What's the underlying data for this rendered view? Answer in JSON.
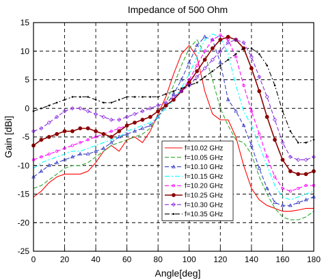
{
  "chart_data": {
    "type": "line",
    "title": "Impedance of 500 Ohm",
    "xlabel": "Angle[deg]",
    "ylabel": "Gain [dBi]",
    "xlim": [
      0,
      180
    ],
    "ylim": [
      -25,
      15
    ],
    "xticks": [
      0,
      20,
      40,
      60,
      80,
      100,
      120,
      140,
      160,
      180
    ],
    "yticks": [
      -25,
      -20,
      -15,
      -10,
      -5,
      0,
      5,
      10,
      15
    ],
    "grid": true,
    "legend_position": "bottom-center",
    "series": [
      {
        "name": "f=10.02 GHz",
        "color": "#ff0000",
        "dash": "solid",
        "marker": "none",
        "x": [
          0,
          5,
          10,
          15,
          20,
          25,
          30,
          35,
          40,
          45,
          50,
          55,
          60,
          65,
          70,
          75,
          80,
          85,
          90,
          95,
          100,
          105,
          110,
          115,
          120,
          125,
          130,
          135,
          140,
          145,
          150,
          155,
          160,
          165,
          170,
          175,
          180
        ],
        "y": [
          -15.5,
          -14.5,
          -13,
          -12,
          -11.5,
          -11.5,
          -11.5,
          -11,
          -9.5,
          -7.5,
          -6.5,
          -7.5,
          -5.5,
          -5,
          -6,
          -4,
          -1,
          2,
          6,
          9.5,
          11,
          9,
          3,
          -1,
          -2,
          -2,
          -5,
          -10,
          -14,
          -16,
          -17,
          -17.5,
          -18,
          -18,
          -17.8,
          -17.5,
          -17.5
        ]
      },
      {
        "name": "f=10.05 GHz",
        "color": "#2aa82a",
        "dash": "dashed",
        "marker": "none",
        "x": [
          0,
          5,
          10,
          15,
          20,
          25,
          30,
          35,
          40,
          45,
          50,
          55,
          60,
          65,
          70,
          75,
          80,
          85,
          90,
          95,
          100,
          105,
          110,
          115,
          120,
          125,
          130,
          135,
          140,
          145,
          150,
          155,
          160,
          165,
          170,
          175,
          180
        ],
        "y": [
          -14,
          -13.5,
          -12.5,
          -11.5,
          -10.5,
          -10,
          -10,
          -9.5,
          -8.5,
          -7.5,
          -6.5,
          -6,
          -5.5,
          -5,
          -4.5,
          -3.5,
          -1.5,
          1,
          4,
          7.5,
          10.5,
          12,
          9.5,
          5,
          0,
          -3,
          -5.5,
          -6,
          -8,
          -12,
          -15,
          -17.5,
          -19,
          -19.5,
          -19.5,
          -19,
          -18
        ]
      },
      {
        "name": "f=10.10 GHz",
        "color": "#3a40c4",
        "dash": "dashed",
        "marker": "triangle",
        "x": [
          0,
          5,
          10,
          15,
          20,
          25,
          30,
          35,
          40,
          45,
          50,
          55,
          60,
          65,
          70,
          75,
          80,
          85,
          90,
          95,
          100,
          105,
          110,
          115,
          120,
          125,
          130,
          135,
          140,
          145,
          150,
          155,
          160,
          165,
          170,
          175,
          180
        ],
        "y": [
          -12,
          -11,
          -10,
          -9.5,
          -9,
          -8.5,
          -8,
          -8,
          -7.5,
          -7,
          -6,
          -5,
          -4.5,
          -4,
          -3.5,
          -3,
          -1.5,
          0.5,
          2.5,
          5,
          8,
          11,
          12.5,
          12,
          8,
          1.5,
          -0.5,
          -3,
          -6.5,
          -10.5,
          -14,
          -16.5,
          -17,
          -17,
          -16.5,
          -16,
          -15.5
        ]
      },
      {
        "name": "f=10.15 GHz",
        "color": "#00ffff",
        "dash": "dashdot",
        "marker": "none",
        "x": [
          0,
          5,
          10,
          15,
          20,
          25,
          30,
          35,
          40,
          45,
          50,
          55,
          60,
          65,
          70,
          75,
          80,
          85,
          90,
          95,
          100,
          105,
          110,
          115,
          120,
          125,
          130,
          135,
          140,
          145,
          150,
          155,
          160,
          165,
          170,
          175,
          180
        ],
        "y": [
          -10.5,
          -9.5,
          -9,
          -8.5,
          -8,
          -7.5,
          -7.5,
          -7,
          -6.5,
          -6,
          -5.5,
          -5,
          -4,
          -3.5,
          -3,
          -2.5,
          -1.5,
          0,
          1.5,
          3.5,
          6,
          9,
          12,
          13,
          12.5,
          9.5,
          4,
          -0.5,
          -3,
          -6.5,
          -10,
          -13.5,
          -15.5,
          -16,
          -15.5,
          -15,
          -14.5
        ]
      },
      {
        "name": "f=10.20 GHz",
        "color": "#ff00ff",
        "dash": "dashed",
        "marker": "dot",
        "x": [
          0,
          5,
          10,
          15,
          20,
          25,
          30,
          35,
          40,
          45,
          50,
          55,
          60,
          65,
          70,
          75,
          80,
          85,
          90,
          95,
          100,
          105,
          110,
          115,
          120,
          125,
          130,
          135,
          140,
          145,
          150,
          155,
          160,
          165,
          170,
          175,
          180
        ],
        "y": [
          -9,
          -8.5,
          -8,
          -7.5,
          -7,
          -6.5,
          -6,
          -5.5,
          -5,
          -4.5,
          -4,
          -3.5,
          -3,
          -2.5,
          -2,
          -1.5,
          -0.5,
          0.5,
          1.5,
          3,
          5,
          7.5,
          10,
          12,
          12.8,
          12,
          9,
          4,
          -0.5,
          -4.5,
          -8.5,
          -12,
          -14,
          -14.5,
          -14,
          -13.5,
          -13.5
        ]
      },
      {
        "name": "f=10.25 GHz",
        "color": "#8b0000",
        "dash": "solid",
        "marker": "filled-dot",
        "x": [
          0,
          5,
          10,
          15,
          20,
          25,
          30,
          35,
          40,
          45,
          50,
          55,
          60,
          65,
          70,
          75,
          80,
          85,
          90,
          95,
          100,
          105,
          110,
          115,
          120,
          125,
          130,
          135,
          140,
          145,
          150,
          155,
          160,
          165,
          170,
          175,
          180
        ],
        "y": [
          -6.5,
          -5.5,
          -5,
          -4.5,
          -4,
          -4,
          -3.5,
          -3.5,
          -4,
          -4.5,
          -5,
          -4,
          -3,
          -2.5,
          -2,
          -1.5,
          -0.5,
          0.5,
          1.5,
          3,
          4.5,
          6.5,
          8.5,
          10.5,
          12,
          12.5,
          12,
          10.5,
          7,
          3,
          -1.5,
          -5.5,
          -9,
          -11,
          -11.5,
          -11.5,
          -11
        ]
      },
      {
        "name": "f=10.30 GHz",
        "color": "#8a2be2",
        "dash": "dashed",
        "marker": "diamond",
        "x": [
          0,
          5,
          10,
          15,
          20,
          25,
          30,
          35,
          40,
          45,
          50,
          55,
          60,
          65,
          70,
          75,
          80,
          85,
          90,
          95,
          100,
          105,
          110,
          115,
          120,
          125,
          130,
          135,
          140,
          145,
          150,
          155,
          160,
          165,
          170,
          175,
          180
        ],
        "y": [
          -4,
          -3.5,
          -2.5,
          -1.5,
          -0.5,
          0,
          0,
          -0.5,
          -1,
          -1.5,
          -2,
          -2,
          -1.5,
          -1,
          -0.5,
          0,
          0.5,
          1,
          2,
          3,
          4,
          5.5,
          7,
          8.5,
          10,
          11.5,
          12,
          11.5,
          9,
          5.5,
          2,
          -2,
          -6,
          -8.5,
          -9,
          -9,
          -8.5
        ]
      },
      {
        "name": "f=10.35 GHz",
        "color": "#000000",
        "dash": "dashdot",
        "marker": "small-dot",
        "x": [
          0,
          5,
          10,
          15,
          20,
          25,
          30,
          35,
          40,
          45,
          50,
          55,
          60,
          65,
          70,
          75,
          80,
          85,
          90,
          95,
          100,
          105,
          110,
          115,
          120,
          125,
          130,
          135,
          140,
          145,
          150,
          155,
          160,
          165,
          170,
          175,
          180
        ],
        "y": [
          -0.5,
          0,
          0.5,
          1,
          1.5,
          2,
          2,
          2,
          1.5,
          1,
          1,
          1.5,
          2,
          2,
          2,
          2,
          2,
          2.5,
          3,
          3.5,
          4,
          4.5,
          5.5,
          6.5,
          7.5,
          8.5,
          9.5,
          10.5,
          10.5,
          9.5,
          7.5,
          4,
          -0.5,
          -4,
          -6,
          -6,
          -5.5
        ]
      }
    ]
  }
}
